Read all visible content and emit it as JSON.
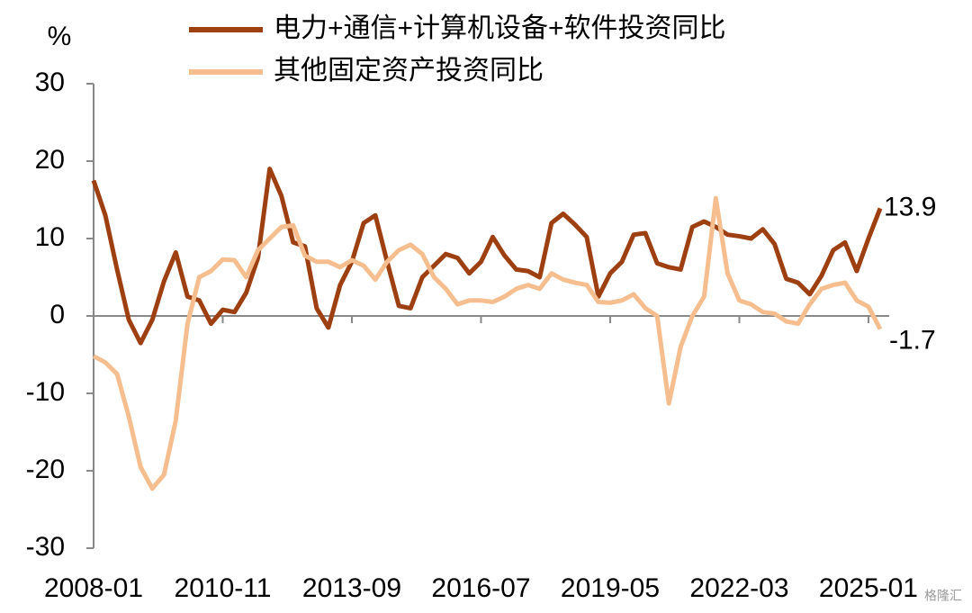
{
  "chart_data": {
    "type": "line",
    "y_label": "%",
    "watermark": "格隆汇",
    "categories": [
      "2008-01",
      null,
      null,
      null,
      null,
      null,
      null,
      null,
      null,
      null,
      null,
      "2010-11",
      null,
      null,
      null,
      null,
      null,
      null,
      null,
      null,
      null,
      null,
      "2013-09",
      null,
      null,
      null,
      null,
      null,
      null,
      null,
      null,
      null,
      null,
      "2016-07",
      null,
      null,
      null,
      null,
      null,
      null,
      null,
      null,
      null,
      null,
      "2019-05",
      null,
      null,
      null,
      null,
      null,
      null,
      null,
      null,
      null,
      null,
      "2022-03",
      null,
      null,
      null,
      null,
      null,
      null,
      null,
      null,
      null,
      null,
      "2025-01",
      null
    ],
    "series": [
      {
        "name": "电力+通信+计算机设备+软件投资同比",
        "color": "#9E3F12",
        "values": [
          17.5,
          13,
          6,
          -0.5,
          -3.5,
          -0.5,
          4.5,
          8.2,
          2.5,
          2,
          -1,
          0.8,
          0.5,
          3,
          7.5,
          19,
          15.5,
          9.5,
          9,
          1,
          -1.5,
          4,
          7,
          12,
          13,
          7,
          1.3,
          1,
          5,
          6.5,
          8,
          7.5,
          5.5,
          7,
          10.2,
          7.8,
          6,
          5.8,
          5,
          12,
          13.2,
          11.8,
          10.2,
          2.5,
          5.5,
          7,
          10.5,
          10.7,
          6.8,
          6.3,
          6,
          11.5,
          12.2,
          11.5,
          10.5,
          10.3,
          10,
          11.2,
          9.3,
          4.8,
          4.3,
          2.8,
          5.2,
          8.5,
          9.5,
          5.8,
          10,
          13.9
        ]
      },
      {
        "name": "其他固定资产投资同比",
        "color": "#F6BE8E",
        "values": [
          -5.2,
          -6,
          -7.5,
          -13,
          -19.5,
          -22.3,
          -20.5,
          -13.5,
          -1,
          5,
          5.8,
          7.3,
          7.2,
          5,
          8.5,
          10,
          11.5,
          11.7,
          7.8,
          7,
          7,
          6.3,
          7.2,
          6.5,
          4.7,
          7,
          8.5,
          9.2,
          8,
          5,
          3.5,
          1.5,
          2,
          2,
          1.8,
          2.5,
          3.5,
          4,
          3.5,
          5.5,
          4.7,
          4.3,
          4,
          1.8,
          1.7,
          2,
          2.8,
          1,
          0,
          -11.3,
          -4,
          0,
          2.5,
          15.2,
          5.5,
          2,
          1.5,
          0.5,
          0.3,
          -0.7,
          -1,
          1.5,
          3.5,
          4,
          4.3,
          2,
          1.2,
          -1.7
        ]
      }
    ],
    "ylim": [
      -30,
      30
    ],
    "yticks": [
      -30,
      -20,
      -10,
      0,
      10,
      20,
      30
    ]
  }
}
